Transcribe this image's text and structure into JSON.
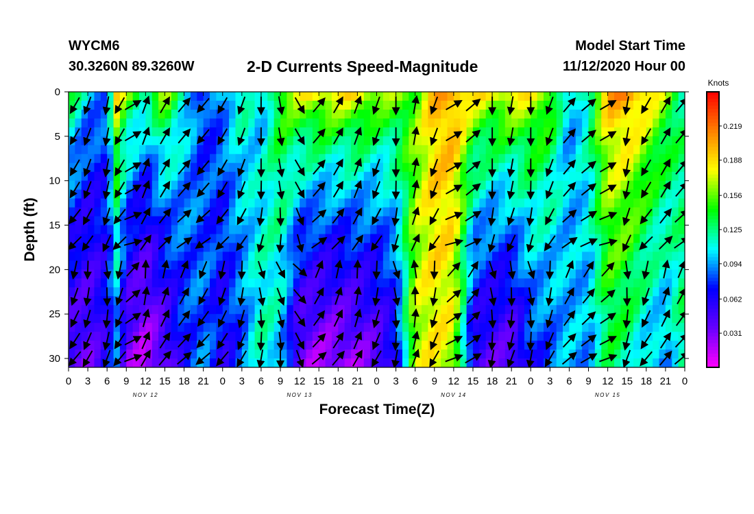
{
  "header": {
    "station_id": "WYCM6",
    "coordinates": "30.3260N 89.3260W",
    "title": "2-D Currents Speed-Magnitude",
    "model_start_label": "Model Start Time",
    "model_start_value": "11/12/2020 Hour 00"
  },
  "chart_data": {
    "type": "heatmap",
    "title": "2-D Currents Speed-Magnitude",
    "xlabel": "Forecast Time(Z)",
    "ylabel": "Depth (ft)",
    "x_range_hours": [
      0,
      96
    ],
    "y_range_ft": [
      0,
      31
    ],
    "x_tick_labels": [
      "0",
      "3",
      "6",
      "9",
      "12",
      "15",
      "18",
      "21",
      "0",
      "3",
      "6",
      "9",
      "12",
      "15",
      "18",
      "21",
      "0",
      "3",
      "6",
      "9",
      "12",
      "15",
      "18",
      "21",
      "0",
      "3",
      "6",
      "9",
      "12",
      "15",
      "18",
      "21",
      "0"
    ],
    "y_ticks": [
      0,
      5,
      10,
      15,
      20,
      25,
      30
    ],
    "day_labels": [
      {
        "label": "NOV 12",
        "hour": 12
      },
      {
        "label": "NOV 13",
        "hour": 36
      },
      {
        "label": "NOV 14",
        "hour": 60
      },
      {
        "label": "NOV 15",
        "hour": 84
      }
    ],
    "colorbar": {
      "unit": "Knots",
      "min": 0.0,
      "max": 0.25,
      "tick_labels": [
        "0.219",
        "0.188",
        "0.156",
        "0.125",
        "0.094",
        "0.062",
        "0.031"
      ],
      "tick_values": [
        0.219,
        0.188,
        0.156,
        0.125,
        0.094,
        0.062,
        0.031
      ],
      "colors": [
        "#ff00ff",
        "#6600ff",
        "#0000ff",
        "#00ffff",
        "#00ff00",
        "#ffff00",
        "#ff8000",
        "#ff0000"
      ]
    },
    "speed_profile": {
      "hours": [
        0,
        3,
        6,
        7.5,
        9,
        12,
        15,
        18,
        21,
        24,
        27,
        30,
        33,
        36,
        39,
        42,
        45,
        48,
        51,
        54,
        57,
        60,
        63,
        66,
        69,
        72,
        75,
        78,
        81,
        84,
        87,
        90,
        93,
        96
      ],
      "surface_speed": [
        0.15,
        0.11,
        0.09,
        0.2,
        0.17,
        0.14,
        0.18,
        0.12,
        0.07,
        0.1,
        0.13,
        0.09,
        0.16,
        0.19,
        0.2,
        0.2,
        0.2,
        0.18,
        0.17,
        0.15,
        0.2,
        0.21,
        0.2,
        0.19,
        0.2,
        0.19,
        0.17,
        0.09,
        0.13,
        0.21,
        0.22,
        0.2,
        0.17,
        0.12
      ],
      "deep_speed": [
        0.04,
        0.035,
        0.06,
        0.08,
        0.03,
        0.015,
        0.035,
        0.07,
        0.09,
        0.06,
        0.08,
        0.12,
        0.1,
        0.03,
        0.02,
        0.02,
        0.025,
        0.035,
        0.06,
        0.17,
        0.18,
        0.17,
        0.05,
        0.04,
        0.035,
        0.07,
        0.08,
        0.1,
        0.09,
        0.13,
        0.12,
        0.1,
        0.09,
        0.13
      ]
    },
    "vectors": {
      "hours": [
        1,
        3,
        6,
        8,
        10,
        12,
        15,
        18,
        21,
        24,
        27,
        30,
        33,
        36,
        39,
        42,
        45,
        48,
        51,
        54,
        57,
        60,
        63,
        66,
        69,
        72,
        75,
        78,
        81,
        84,
        87,
        90,
        93,
        95.5
      ],
      "depths_ft": [
        1.5,
        5,
        8.5,
        11,
        14,
        17,
        20,
        23,
        25.5,
        28,
        30
      ],
      "angles_deg": [
        210,
        200,
        190,
        210,
        60,
        20,
        30,
        40,
        220,
        210,
        200,
        180,
        170,
        150,
        40,
        30,
        20,
        200,
        180,
        10,
        200,
        60,
        50,
        180,
        190,
        180,
        200,
        40,
        50,
        60,
        190,
        210,
        30,
        40
      ]
    }
  }
}
